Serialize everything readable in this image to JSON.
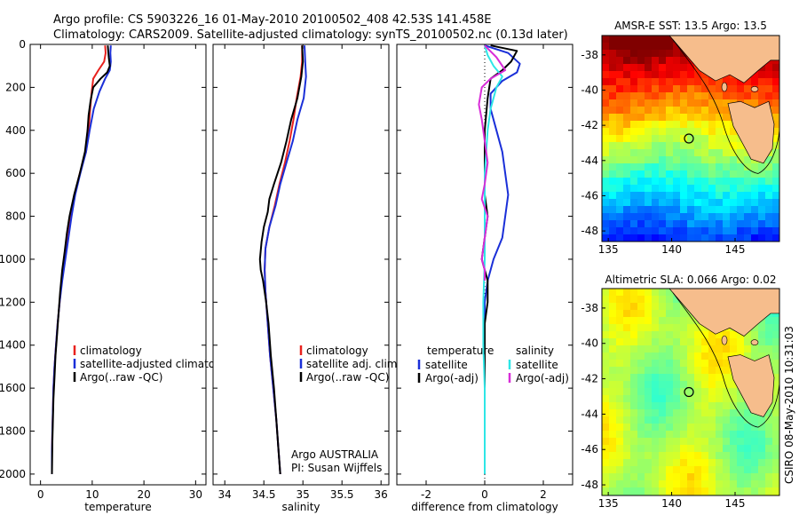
{
  "header": {
    "line1": "Argo profile: CS 5903226_16 01-May-2010 20100502_408 42.53S 141.458E",
    "line2": "Climatology: CARS2009. Satellite-adjusted climatology: synTS_20100502.nc (0.13d later)"
  },
  "colors": {
    "climatology": "#e8211d",
    "satellite": "#1a2fd8",
    "argo": "#000000",
    "cyan": "#2ee6e6",
    "magenta": "#d82dd8",
    "land": "#f6bd8c"
  },
  "chart_data": [
    {
      "type": "line",
      "xlabel": "temperature",
      "ylabel": "",
      "xlim": [
        -2,
        32
      ],
      "ylim": [
        2050,
        0
      ],
      "xticks": [
        0,
        10,
        20,
        30
      ],
      "yticks": [
        0,
        200,
        400,
        600,
        800,
        1000,
        1200,
        1400,
        1600,
        1800,
        2000
      ],
      "legend": {
        "position": "bottom-right",
        "entries": [
          "climatology",
          "satellite-adjusted climatolog",
          "Argo(..raw -QC)"
        ]
      },
      "series": [
        {
          "name": "climatology",
          "color": "#e8211d",
          "points": [
            [
              12.5,
              5
            ],
            [
              12.6,
              40
            ],
            [
              12.3,
              80
            ],
            [
              11.2,
              120
            ],
            [
              10.2,
              160
            ],
            [
              9.9,
              220
            ],
            [
              9.6,
              300
            ],
            [
              9.3,
              400
            ],
            [
              8.8,
              500
            ],
            [
              7.6,
              600
            ],
            [
              6.6,
              700
            ],
            [
              5.9,
              800
            ],
            [
              5.3,
              900
            ],
            [
              4.7,
              1000
            ],
            [
              4.1,
              1100
            ],
            [
              3.7,
              1200
            ],
            [
              3.3,
              1300
            ],
            [
              3.0,
              1400
            ],
            [
              2.7,
              1500
            ],
            [
              2.5,
              1600
            ],
            [
              2.4,
              1700
            ],
            [
              2.3,
              1800
            ],
            [
              2.2,
              1900
            ],
            [
              2.2,
              2000
            ]
          ]
        },
        {
          "name": "satellite-adjusted climatolog",
          "color": "#1a2fd8",
          "points": [
            [
              13.6,
              5
            ],
            [
              13.5,
              40
            ],
            [
              13.6,
              80
            ],
            [
              13.4,
              120
            ],
            [
              12.5,
              160
            ],
            [
              11.4,
              220
            ],
            [
              10.3,
              300
            ],
            [
              9.5,
              400
            ],
            [
              8.8,
              500
            ],
            [
              7.7,
              600
            ],
            [
              6.7,
              700
            ],
            [
              6.0,
              800
            ],
            [
              5.4,
              900
            ],
            [
              4.8,
              1000
            ],
            [
              4.2,
              1100
            ],
            [
              3.7,
              1200
            ],
            [
              3.3,
              1300
            ],
            [
              3.0,
              1400
            ],
            [
              2.7,
              1500
            ],
            [
              2.5,
              1600
            ],
            [
              2.4,
              1700
            ],
            [
              2.3,
              1800
            ],
            [
              2.2,
              1900
            ],
            [
              2.2,
              2000
            ]
          ]
        },
        {
          "name": "Argo(..raw -QC)",
          "color": "#000000",
          "points": [
            [
              13.0,
              5
            ],
            [
              13.1,
              30
            ],
            [
              13.2,
              60
            ],
            [
              13.4,
              100
            ],
            [
              12.9,
              130
            ],
            [
              11.6,
              160
            ],
            [
              10.2,
              200
            ],
            [
              9.7,
              260
            ],
            [
              9.3,
              330
            ],
            [
              9.1,
              400
            ],
            [
              8.6,
              500
            ],
            [
              7.6,
              600
            ],
            [
              6.5,
              700
            ],
            [
              5.6,
              800
            ],
            [
              5.1,
              880
            ],
            [
              4.7,
              960
            ],
            [
              4.2,
              1050
            ],
            [
              3.8,
              1150
            ],
            [
              3.5,
              1250
            ],
            [
              3.2,
              1350
            ],
            [
              2.9,
              1450
            ],
            [
              2.7,
              1550
            ],
            [
              2.5,
              1650
            ],
            [
              2.4,
              1750
            ],
            [
              2.3,
              1850
            ],
            [
              2.2,
              2000
            ]
          ]
        }
      ]
    },
    {
      "type": "line",
      "xlabel": "salinity",
      "ylabel": "",
      "xlim": [
        33.85,
        36.1
      ],
      "ylim": [
        2050,
        0
      ],
      "xticks": [
        34,
        34.5,
        35,
        35.5,
        36
      ],
      "legend": {
        "position": "bottom-right",
        "entries": [
          "climatology",
          "satellite adj. clim.",
          "Argo(..raw -QC)"
        ]
      },
      "annotation": [
        "Argo AUSTRALIA",
        "PI: Susan Wijffels"
      ],
      "series": [
        {
          "name": "climatology",
          "color": "#e8211d",
          "points": [
            [
              34.99,
              5
            ],
            [
              34.99,
              80
            ],
            [
              34.97,
              150
            ],
            [
              34.92,
              250
            ],
            [
              34.88,
              350
            ],
            [
              34.83,
              450
            ],
            [
              34.77,
              550
            ],
            [
              34.7,
              650
            ],
            [
              34.64,
              750
            ],
            [
              34.57,
              850
            ],
            [
              34.52,
              950
            ],
            [
              34.51,
              1050
            ],
            [
              34.52,
              1150
            ],
            [
              34.55,
              1300
            ],
            [
              34.58,
              1450
            ],
            [
              34.62,
              1600
            ],
            [
              34.66,
              1750
            ],
            [
              34.69,
              1900
            ],
            [
              34.71,
              2000
            ]
          ]
        },
        {
          "name": "satellite adj. clim.",
          "color": "#1a2fd8",
          "points": [
            [
              35.02,
              5
            ],
            [
              35.03,
              80
            ],
            [
              35.04,
              150
            ],
            [
              35.01,
              250
            ],
            [
              34.93,
              350
            ],
            [
              34.87,
              450
            ],
            [
              34.79,
              550
            ],
            [
              34.71,
              650
            ],
            [
              34.65,
              750
            ],
            [
              34.57,
              850
            ],
            [
              34.52,
              950
            ],
            [
              34.51,
              1050
            ],
            [
              34.52,
              1150
            ],
            [
              34.55,
              1300
            ],
            [
              34.58,
              1450
            ],
            [
              34.62,
              1600
            ],
            [
              34.66,
              1750
            ],
            [
              34.69,
              1900
            ],
            [
              34.71,
              2000
            ]
          ]
        },
        {
          "name": "Argo(..raw -QC)",
          "color": "#000000",
          "points": [
            [
              34.99,
              5
            ],
            [
              35.0,
              80
            ],
            [
              34.98,
              150
            ],
            [
              34.93,
              250
            ],
            [
              34.85,
              350
            ],
            [
              34.79,
              450
            ],
            [
              34.72,
              550
            ],
            [
              34.63,
              650
            ],
            [
              34.57,
              720
            ],
            [
              34.55,
              780
            ],
            [
              34.5,
              850
            ],
            [
              34.47,
              920
            ],
            [
              34.45,
              1000
            ],
            [
              34.46,
              1050
            ],
            [
              34.49,
              1100
            ],
            [
              34.53,
              1200
            ],
            [
              34.56,
              1300
            ],
            [
              34.59,
              1450
            ],
            [
              34.63,
              1600
            ],
            [
              34.66,
              1750
            ],
            [
              34.69,
              1900
            ],
            [
              34.71,
              2000
            ]
          ]
        }
      ]
    },
    {
      "type": "line",
      "xlabel": "difference from climatology",
      "ylabel": "",
      "xlim": [
        -3,
        3
      ],
      "ylim": [
        2050,
        0
      ],
      "xticks": [
        -2,
        0,
        2
      ],
      "legend": {
        "position": "bottom",
        "entries": [
          "temperature",
          "satellite",
          "Argo(-adj)",
          "salinity",
          "satellite",
          "Argo(-adj)"
        ]
      },
      "series": [
        {
          "name": "satellite",
          "color": "#1a2fd8",
          "points": [
            [
              0.0,
              5
            ],
            [
              0.8,
              40
            ],
            [
              1.2,
              90
            ],
            [
              1.1,
              130
            ],
            [
              0.6,
              170
            ],
            [
              0.2,
              230
            ],
            [
              0.2,
              300
            ],
            [
              0.4,
              400
            ],
            [
              0.6,
              500
            ],
            [
              0.7,
              600
            ],
            [
              0.8,
              700
            ],
            [
              0.7,
              800
            ],
            [
              0.6,
              900
            ],
            [
              0.3,
              1000
            ],
            [
              0.1,
              1100
            ],
            [
              0.0,
              1200
            ],
            [
              0.0,
              2000
            ]
          ]
        },
        {
          "name": "Argo(-adj)",
          "color": "#000000",
          "points": [
            [
              0.2,
              5
            ],
            [
              1.1,
              30
            ],
            [
              0.9,
              80
            ],
            [
              0.6,
              120
            ],
            [
              0.2,
              160
            ],
            [
              0.1,
              250
            ],
            [
              0.0,
              400
            ],
            [
              0.0,
              700
            ],
            [
              0.1,
              800
            ],
            [
              0.0,
              900
            ],
            [
              -0.1,
              1000
            ],
            [
              0.0,
              1050
            ],
            [
              0.1,
              1100
            ],
            [
              0.1,
              1200
            ],
            [
              0.0,
              1300
            ],
            [
              0.0,
              2000
            ]
          ]
        },
        {
          "name": "satellite",
          "color": "#2ee6e6",
          "points": [
            [
              0.0,
              5
            ],
            [
              0.1,
              50
            ],
            [
              0.3,
              100
            ],
            [
              0.6,
              150
            ],
            [
              0.4,
              200
            ],
            [
              0.2,
              300
            ],
            [
              0.1,
              400
            ],
            [
              0.0,
              600
            ],
            [
              0.0,
              800
            ],
            [
              0.0,
              1000
            ],
            [
              -0.05,
              1200
            ],
            [
              -0.05,
              1400
            ],
            [
              0.0,
              1600
            ],
            [
              0.0,
              2000
            ]
          ]
        },
        {
          "name": "Argo(-adj)",
          "color": "#d82dd8",
          "points": [
            [
              0.0,
              5
            ],
            [
              0.4,
              60
            ],
            [
              0.7,
              120
            ],
            [
              0.2,
              160
            ],
            [
              -0.1,
              200
            ],
            [
              -0.2,
              280
            ],
            [
              -0.1,
              350
            ],
            [
              0.0,
              450
            ],
            [
              0.1,
              550
            ],
            [
              0.0,
              650
            ],
            [
              -0.1,
              720
            ],
            [
              0.1,
              800
            ],
            [
              0.0,
              900
            ],
            [
              -0.1,
              1000
            ],
            [
              0.0,
              1050
            ],
            [
              0.0,
              1100
            ]
          ]
        }
      ]
    }
  ],
  "maps": [
    {
      "title": "AMSR-E SST: 13.5 Argo: 13.5",
      "kind": "sst",
      "xticks": [
        "135",
        "140",
        "145"
      ],
      "yticks": [
        "-38",
        "-40",
        "-42",
        "-44",
        "-46",
        "-48"
      ]
    },
    {
      "title": "Altimetric SLA: 0.066 Argo: 0.02",
      "kind": "sla",
      "xticks": [
        "135",
        "140",
        "145"
      ],
      "yticks": [
        "-38",
        "-40",
        "-42",
        "-44",
        "-46",
        "-48"
      ]
    }
  ],
  "credit": "CSIRO 08-May-2010 10:31:03"
}
